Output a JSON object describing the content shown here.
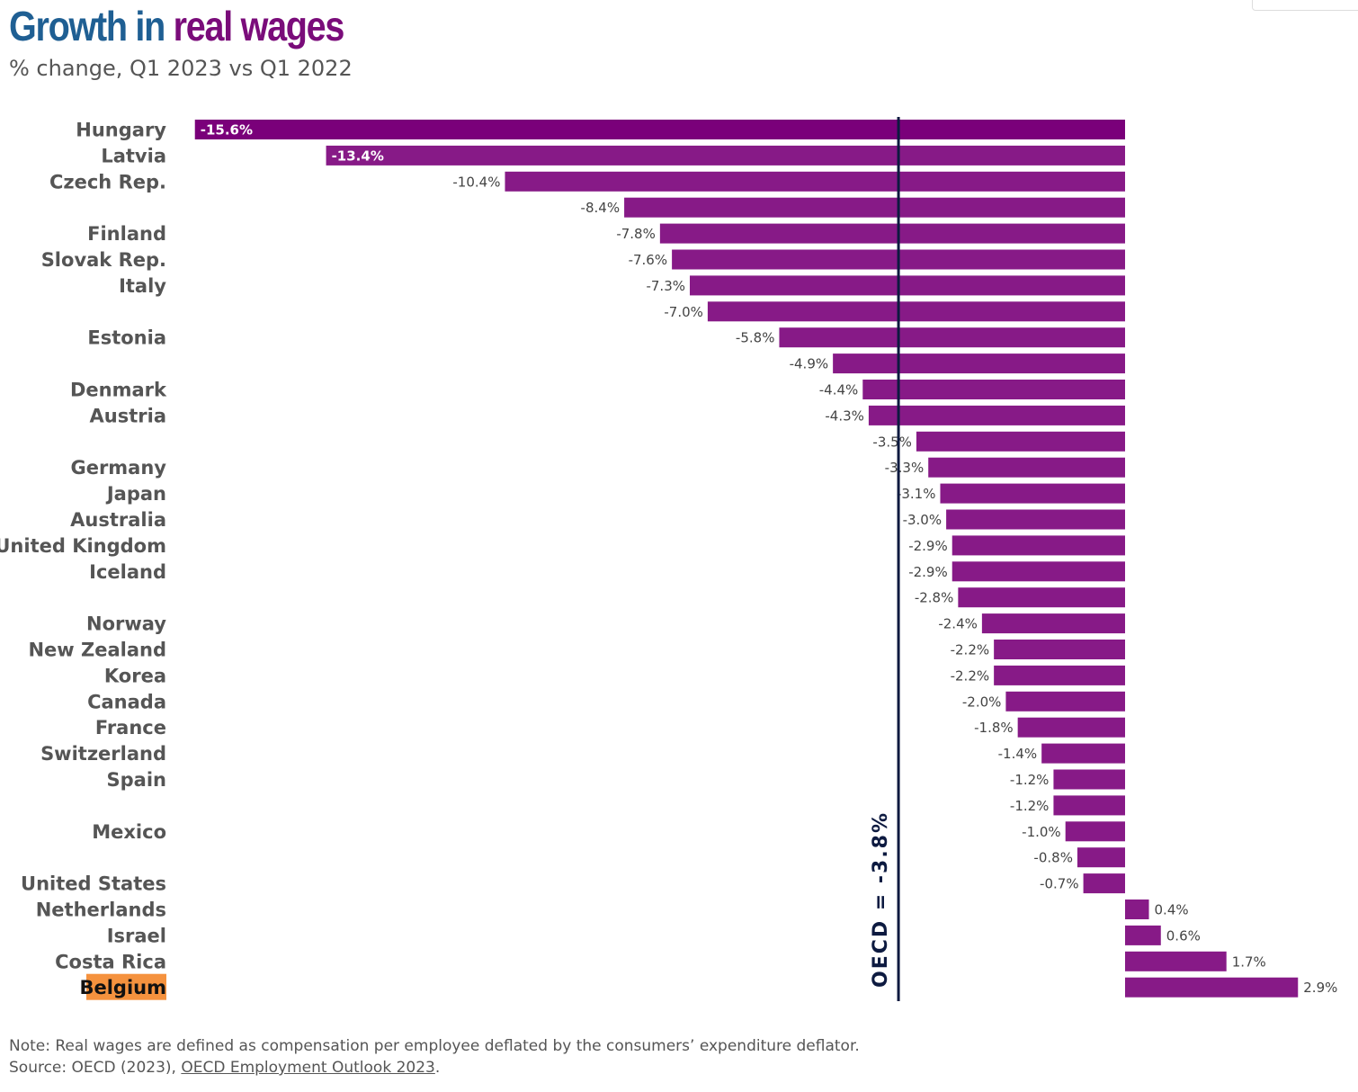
{
  "title": {
    "part1": "Growth in",
    "part2": "real wages"
  },
  "subtitle": "% change, Q1 2023 vs Q1 2022",
  "colors": {
    "bar": "#871a87",
    "bar_top": "#7a007a",
    "highlight": "#f5923e",
    "reference_line": "#0d1a40",
    "title_blue": "#1f5f93",
    "title_purple": "#7a0c7a"
  },
  "reference": {
    "label": "OECD = -3.8%",
    "value": -3.8
  },
  "note": {
    "line1": "Note: Real wages are defined as compensation per employee deflated by the consumers’ expenditure deflator.",
    "source_prefix": "Source: OECD (2023), ",
    "source_link": "OECD Employment Outlook 2023",
    "source_suffix": "."
  },
  "chart_data": {
    "type": "bar",
    "orientation": "horizontal",
    "title": "Growth in real wages",
    "subtitle": "% change, Q1 2023 vs Q1 2022",
    "highlighted_category": "Belgium",
    "categories": [
      "Hungary",
      "Latvia",
      "Czech Rep.",
      "",
      "Finland",
      "Slovak Rep.",
      "Italy",
      "",
      "Estonia",
      "",
      "Denmark",
      "Austria",
      "",
      "Germany",
      "Japan",
      "Australia",
      "United Kingdom",
      "Iceland",
      "",
      "Norway",
      "New Zealand",
      "Korea",
      "Canada",
      "France",
      "Switzerland",
      "Spain",
      "",
      "Mexico",
      "",
      "United States",
      "Netherlands",
      "Israel",
      "Costa Rica",
      "Belgium"
    ],
    "values": [
      -15.6,
      -13.4,
      -10.4,
      -8.4,
      -7.8,
      -7.6,
      -7.3,
      -7.0,
      -5.8,
      -4.9,
      -4.4,
      -4.3,
      -3.5,
      -3.3,
      -3.1,
      -3.0,
      -2.9,
      -2.9,
      -2.8,
      -2.4,
      -2.2,
      -2.2,
      -2.0,
      -1.8,
      -1.4,
      -1.2,
      -1.2,
      -1.0,
      -0.8,
      -0.7,
      0.4,
      0.6,
      1.7,
      2.9
    ],
    "value_labels": [
      "-15.6%",
      "-13.4%",
      "-10.4%",
      "-8.4%",
      "-7.8%",
      "-7.6%",
      "-7.3%",
      "-7.0%",
      "-5.8%",
      "-4.9%",
      "-4.4%",
      "-4.3%",
      "-3.5%",
      "-3.3%",
      "-3.1%",
      "-3.0%",
      "-2.9%",
      "-2.9%",
      "-2.8%",
      "-2.4%",
      "-2.2%",
      "-2.2%",
      "-2.0%",
      "-1.8%",
      "-1.4%",
      "-1.2%",
      "-1.2%",
      "-1.0%",
      "-0.8%",
      "-0.7%",
      "0.4%",
      "0.6%",
      "1.7%",
      "2.9%"
    ],
    "inside_label_categories": [
      "Hungary",
      "Latvia"
    ],
    "reference_line": {
      "label": "OECD = -3.8%",
      "value": -3.8
    },
    "xlim": [
      -15.6,
      2.9
    ],
    "grid": false,
    "legend": "none"
  }
}
